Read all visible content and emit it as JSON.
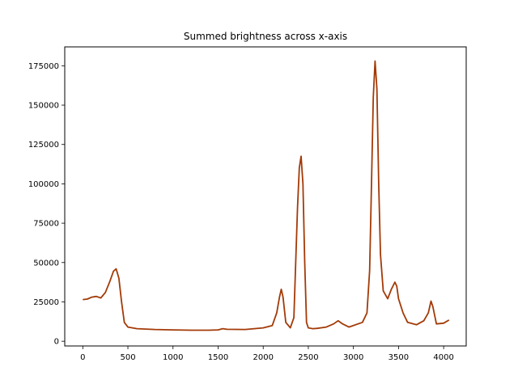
{
  "chart_data": {
    "type": "line",
    "title": "Summed brightness across x-axis",
    "xlabel": "",
    "ylabel": "",
    "xlim": [
      -200,
      4250
    ],
    "ylim": [
      -3000,
      187000
    ],
    "grid": false,
    "line_color": "#a33a07",
    "x_ticks": [
      0,
      500,
      1000,
      1500,
      2000,
      2500,
      3000,
      3500,
      4000
    ],
    "x_tick_labels": [
      "0",
      "500",
      "1000",
      "1500",
      "2000",
      "2500",
      "3000",
      "3500",
      "4000"
    ],
    "y_ticks": [
      0,
      25000,
      50000,
      75000,
      100000,
      125000,
      150000,
      175000
    ],
    "y_tick_labels": [
      "0",
      "25000",
      "50000",
      "75000",
      "100000",
      "125000",
      "150000",
      "175000"
    ],
    "series": [
      {
        "name": "summed brightness",
        "x": [
          0,
          50,
          100,
          150,
          200,
          250,
          300,
          340,
          370,
          400,
          430,
          460,
          500,
          600,
          800,
          1000,
          1200,
          1400,
          1500,
          1550,
          1600,
          1800,
          2000,
          2100,
          2150,
          2180,
          2200,
          2220,
          2250,
          2300,
          2340,
          2380,
          2400,
          2420,
          2440,
          2460,
          2480,
          2500,
          2550,
          2600,
          2700,
          2780,
          2830,
          2880,
          2950,
          3100,
          3150,
          3180,
          3200,
          3220,
          3240,
          3260,
          3280,
          3300,
          3330,
          3380,
          3420,
          3460,
          3480,
          3500,
          3550,
          3600,
          3700,
          3780,
          3830,
          3860,
          3880,
          3920,
          4000,
          4060
        ],
        "values": [
          26500,
          26800,
          28000,
          28500,
          27500,
          31000,
          38000,
          44500,
          46000,
          40000,
          25000,
          12000,
          9000,
          8000,
          7500,
          7200,
          7000,
          7000,
          7200,
          8000,
          7600,
          7500,
          8500,
          10000,
          18000,
          28000,
          33000,
          28000,
          12000,
          8500,
          15000,
          85000,
          110000,
          117500,
          100000,
          50000,
          12000,
          8500,
          8000,
          8200,
          9000,
          11000,
          13000,
          11000,
          9000,
          12000,
          18000,
          45000,
          100000,
          155000,
          178000,
          160000,
          100000,
          55000,
          32000,
          27000,
          33000,
          37500,
          35000,
          27000,
          18000,
          12000,
          10500,
          13000,
          18000,
          25500,
          22000,
          11000,
          11500,
          13500
        ]
      }
    ]
  }
}
